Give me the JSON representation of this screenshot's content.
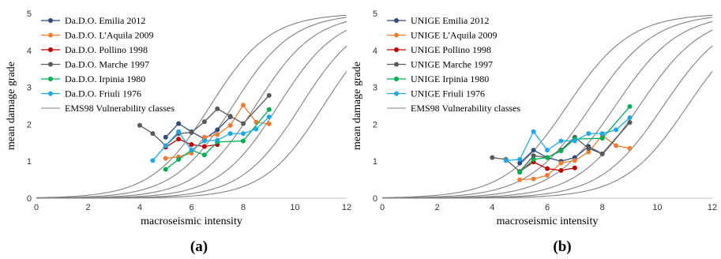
{
  "chart_data": [
    {
      "type": "line",
      "panel_label": "(a)",
      "xlabel": "macroseismic intensity",
      "ylabel": "mean damage grade",
      "xlim": [
        0,
        12
      ],
      "ylim": [
        0,
        5
      ],
      "xticks": [
        "0",
        "2",
        "4",
        "6",
        "8",
        "10",
        "12"
      ],
      "yticks": [
        "0",
        "1",
        "2",
        "3",
        "4",
        "5"
      ],
      "grid": false,
      "legend_position": "top-left",
      "series": [
        {
          "name": "Da.D.O. Emilia 2012",
          "color": "#2f4b7c",
          "points": [
            [
              5,
              1.65
            ],
            [
              5.5,
              2.02
            ],
            [
              6,
              1.8
            ],
            [
              6.5,
              1.6
            ],
            [
              7,
              1.85
            ],
            [
              7.5,
              2.2
            ]
          ]
        },
        {
          "name": "Da.D.O. L'Aquila 2009",
          "color": "#ed7d31",
          "points": [
            [
              5,
              1.08
            ],
            [
              5.5,
              1.12
            ],
            [
              6,
              1.22
            ],
            [
              6.5,
              1.65
            ],
            [
              7,
              1.72
            ],
            [
              7.5,
              1.97
            ],
            [
              8,
              2.52
            ],
            [
              8.5,
              2.06
            ],
            [
              9,
              2.01
            ]
          ]
        },
        {
          "name": "Da.D.O. Pollino 1998",
          "color": "#c00000",
          "points": [
            [
              5,
              1.38
            ],
            [
              5.5,
              1.6
            ],
            [
              6,
              1.45
            ],
            [
              6.5,
              1.4
            ],
            [
              7,
              1.45
            ]
          ]
        },
        {
          "name": "Da.D.O. Marche 1997",
          "color": "#595959",
          "points": [
            [
              4,
              1.97
            ],
            [
              4.5,
              1.75
            ],
            [
              5,
              1.42
            ],
            [
              5.5,
              1.75
            ],
            [
              6,
              1.78
            ],
            [
              6.5,
              2.07
            ],
            [
              7,
              2.42
            ],
            [
              7.5,
              2.22
            ],
            [
              8,
              2.02
            ],
            [
              9,
              2.78
            ]
          ]
        },
        {
          "name": "Da.D.O. Irpinia 1980",
          "color": "#00b050",
          "points": [
            [
              5,
              0.78
            ],
            [
              5.5,
              1.05
            ],
            [
              6,
              1.3
            ],
            [
              6.5,
              1.17
            ],
            [
              7,
              1.52
            ],
            [
              8,
              1.55
            ],
            [
              9,
              2.4
            ]
          ]
        },
        {
          "name": "Da.D.O. Friuli 1976",
          "color": "#1ca9e6",
          "points": [
            [
              4.5,
              1.02
            ],
            [
              5,
              1.42
            ],
            [
              5.5,
              1.8
            ],
            [
              6,
              1.3
            ],
            [
              6.5,
              1.55
            ],
            [
              7,
              1.57
            ],
            [
              7.5,
              1.75
            ],
            [
              8,
              1.75
            ],
            [
              8.5,
              1.87
            ],
            [
              9,
              2.2
            ]
          ]
        },
        {
          "name": "EMS98 Vulnerability classes",
          "color": "#808080",
          "curves": true
        }
      ]
    },
    {
      "type": "line",
      "panel_label": "(b)",
      "xlabel": "macroseismic intensity",
      "ylabel": "mean damage grade",
      "xlim": [
        0,
        12
      ],
      "ylim": [
        0,
        5
      ],
      "xticks": [
        "0",
        "2",
        "4",
        "6",
        "8",
        "10",
        "12"
      ],
      "yticks": [
        "0",
        "1",
        "2",
        "3",
        "4",
        "5"
      ],
      "grid": false,
      "legend_position": "top-left",
      "series": [
        {
          "name": "UNIGE Emilia 2012",
          "color": "#2f4b7c",
          "points": [
            [
              5,
              0.95
            ],
            [
              5.5,
              1.3
            ],
            [
              6,
              1.1
            ],
            [
              6.5,
              1.0
            ],
            [
              7,
              1.1
            ],
            [
              7.5,
              1.4
            ],
            [
              8,
              1.2
            ],
            [
              9,
              2.05
            ]
          ]
        },
        {
          "name": "UNIGE L'Aquila 2009",
          "color": "#ed7d31",
          "points": [
            [
              5,
              0.5
            ],
            [
              5.5,
              0.52
            ],
            [
              6,
              0.62
            ],
            [
              6.5,
              0.95
            ],
            [
              7,
              1.02
            ],
            [
              7.5,
              1.25
            ],
            [
              8,
              1.7
            ],
            [
              8.5,
              1.42
            ],
            [
              9,
              1.35
            ]
          ]
        },
        {
          "name": "UNIGE Pollino 1998",
          "color": "#c00000",
          "points": [
            [
              5,
              0.72
            ],
            [
              5.5,
              0.98
            ],
            [
              6,
              0.8
            ],
            [
              6.5,
              0.75
            ],
            [
              7,
              0.82
            ]
          ]
        },
        {
          "name": "UNIGE Marche 1997",
          "color": "#595959",
          "points": [
            [
              4,
              1.1
            ],
            [
              4.5,
              1.05
            ],
            [
              5,
              0.72
            ],
            [
              5.5,
              1.15
            ],
            [
              6,
              1.1
            ],
            [
              6.5,
              1.3
            ],
            [
              7,
              1.65
            ],
            [
              7.5,
              1.35
            ],
            [
              8,
              1.2
            ],
            [
              9,
              2.05
            ]
          ]
        },
        {
          "name": "UNIGE Irpinia 1980",
          "color": "#00b050",
          "points": [
            [
              5,
              0.7
            ],
            [
              5.5,
              1.05
            ],
            [
              6,
              1.1
            ],
            [
              6.5,
              1.28
            ],
            [
              7,
              1.6
            ],
            [
              8,
              1.62
            ],
            [
              9,
              2.48
            ]
          ]
        },
        {
          "name": "UNIGE Friuli 1976",
          "color": "#1ca9e6",
          "points": [
            [
              4.5,
              1.02
            ],
            [
              5,
              1.05
            ],
            [
              5.5,
              1.8
            ],
            [
              6,
              1.3
            ],
            [
              6.5,
              1.55
            ],
            [
              7,
              1.55
            ],
            [
              7.5,
              1.75
            ],
            [
              8,
              1.75
            ],
            [
              8.5,
              1.85
            ],
            [
              9,
              2.18
            ]
          ]
        },
        {
          "name": "EMS98 Vulnerability classes",
          "color": "#808080",
          "curves": true
        }
      ]
    }
  ]
}
